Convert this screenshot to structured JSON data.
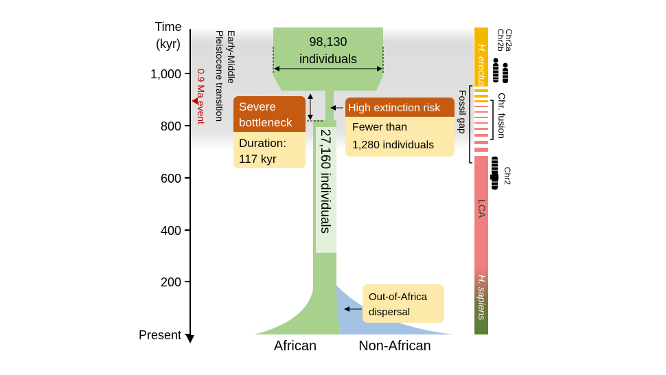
{
  "axis": {
    "title_line1": "Time",
    "title_line2": "(kyr)",
    "ticks": [
      "1,000",
      "800",
      "600",
      "400",
      "200",
      "Present"
    ]
  },
  "annotations": {
    "event": "0.9 Ma event",
    "transition_line1": "Early-Middle",
    "transition_line2": "Pleistocene transition",
    "ancestral_count": "98,130",
    "ancestral_unit": "individuals",
    "bottleneck_count": "27,160 individuals",
    "severe_title_line1": "Severe",
    "severe_title_line2": "bottleneck",
    "duration_line1": "Duration:",
    "duration_line2": "117 kyr",
    "risk_title": "High extinction risk",
    "risk_line1": "Fewer than",
    "risk_line2": "1,280 individuals",
    "ooa_line1": "Out-of-Africa",
    "ooa_line2": "dispersal",
    "african": "African",
    "non_african": "Non-African"
  },
  "sidebar": {
    "erectus": "H. erectus",
    "lca": "LCA",
    "sapiens": "H. sapiens",
    "fossil_gap": "Fossil gap",
    "fusion": "Chr. fusion",
    "chr2a": "Chr2a",
    "chr2b": "Chr2b",
    "chr2": "Chr2"
  },
  "colors": {
    "population": "#a9d18e",
    "non_african": "#a4c2e4",
    "orange": "#c55a11",
    "yellow_box": "#fde9a9",
    "erectus": "#f5b800",
    "lca": "#f08080",
    "sapiens": "#548235",
    "event_red": "#c00000"
  }
}
